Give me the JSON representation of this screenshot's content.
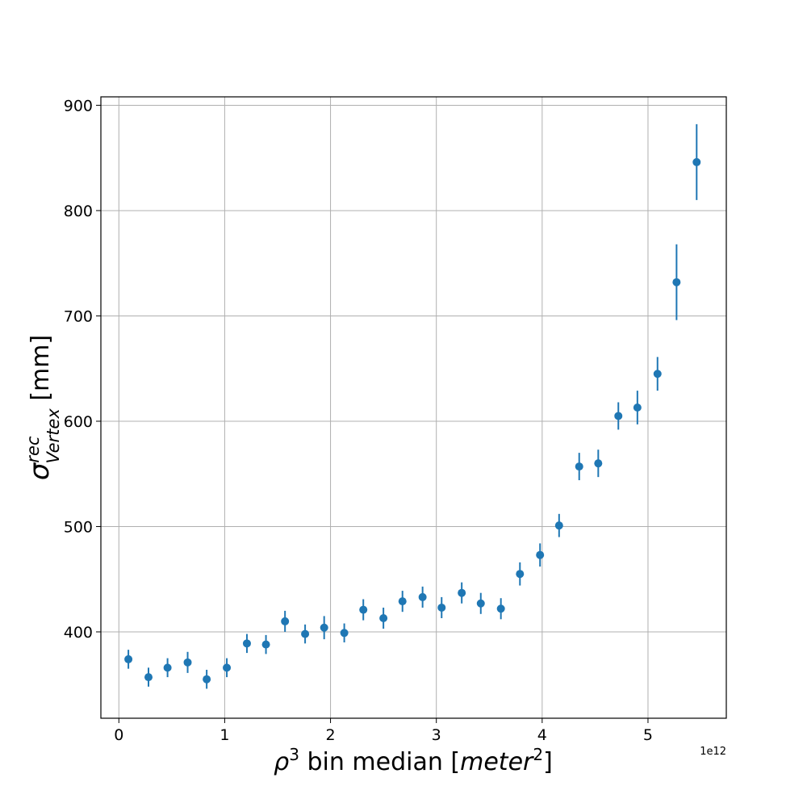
{
  "chart_data": {
    "type": "scatter",
    "title": "",
    "xlabel_main": "ρ",
    "xlabel_sup": "3",
    "xlabel_mid": " bin median [",
    "xlabel_unit": "meter",
    "xlabel_unit_sup": "2",
    "xlabel_end": "]",
    "ylabel_main": "σ",
    "ylabel_sup": "rec",
    "ylabel_sub": "Vertex",
    "ylabel_unit": " [mm]",
    "x_offset_text": "1e12",
    "xlim": [
      -0.17,
      5.74
    ],
    "ylim": [
      318,
      908
    ],
    "xticks": [
      0,
      1,
      2,
      3,
      4,
      5
    ],
    "xtick_labels": [
      "0",
      "1",
      "2",
      "3",
      "4",
      "5"
    ],
    "yticks": [
      400,
      500,
      600,
      700,
      800,
      900
    ],
    "ytick_labels": [
      "400",
      "500",
      "600",
      "700",
      "800",
      "900"
    ],
    "grid": true,
    "color": "#1f77b4",
    "points": [
      {
        "x": 0.09,
        "y": 374,
        "err": 9
      },
      {
        "x": 0.28,
        "y": 357,
        "err": 9
      },
      {
        "x": 0.46,
        "y": 366,
        "err": 9
      },
      {
        "x": 0.65,
        "y": 371,
        "err": 10
      },
      {
        "x": 0.83,
        "y": 355,
        "err": 9
      },
      {
        "x": 1.02,
        "y": 366,
        "err": 9
      },
      {
        "x": 1.21,
        "y": 389,
        "err": 9
      },
      {
        "x": 1.39,
        "y": 388,
        "err": 9
      },
      {
        "x": 1.57,
        "y": 410,
        "err": 10
      },
      {
        "x": 1.76,
        "y": 398,
        "err": 9
      },
      {
        "x": 1.94,
        "y": 404,
        "err": 11
      },
      {
        "x": 2.13,
        "y": 399,
        "err": 9
      },
      {
        "x": 2.31,
        "y": 421,
        "err": 10
      },
      {
        "x": 2.5,
        "y": 413,
        "err": 10
      },
      {
        "x": 2.68,
        "y": 429,
        "err": 10
      },
      {
        "x": 2.87,
        "y": 433,
        "err": 10
      },
      {
        "x": 3.05,
        "y": 423,
        "err": 10
      },
      {
        "x": 3.24,
        "y": 437,
        "err": 10
      },
      {
        "x": 3.42,
        "y": 427,
        "err": 10
      },
      {
        "x": 3.61,
        "y": 422,
        "err": 10
      },
      {
        "x": 3.79,
        "y": 455,
        "err": 11
      },
      {
        "x": 3.98,
        "y": 473,
        "err": 11
      },
      {
        "x": 4.16,
        "y": 501,
        "err": 11
      },
      {
        "x": 4.35,
        "y": 557,
        "err": 13
      },
      {
        "x": 4.53,
        "y": 560,
        "err": 13
      },
      {
        "x": 4.72,
        "y": 605,
        "err": 13
      },
      {
        "x": 4.9,
        "y": 613,
        "err": 16
      },
      {
        "x": 5.09,
        "y": 645,
        "err": 16
      },
      {
        "x": 5.27,
        "y": 732,
        "err": 36
      },
      {
        "x": 5.46,
        "y": 846,
        "err": 36
      }
    ]
  }
}
